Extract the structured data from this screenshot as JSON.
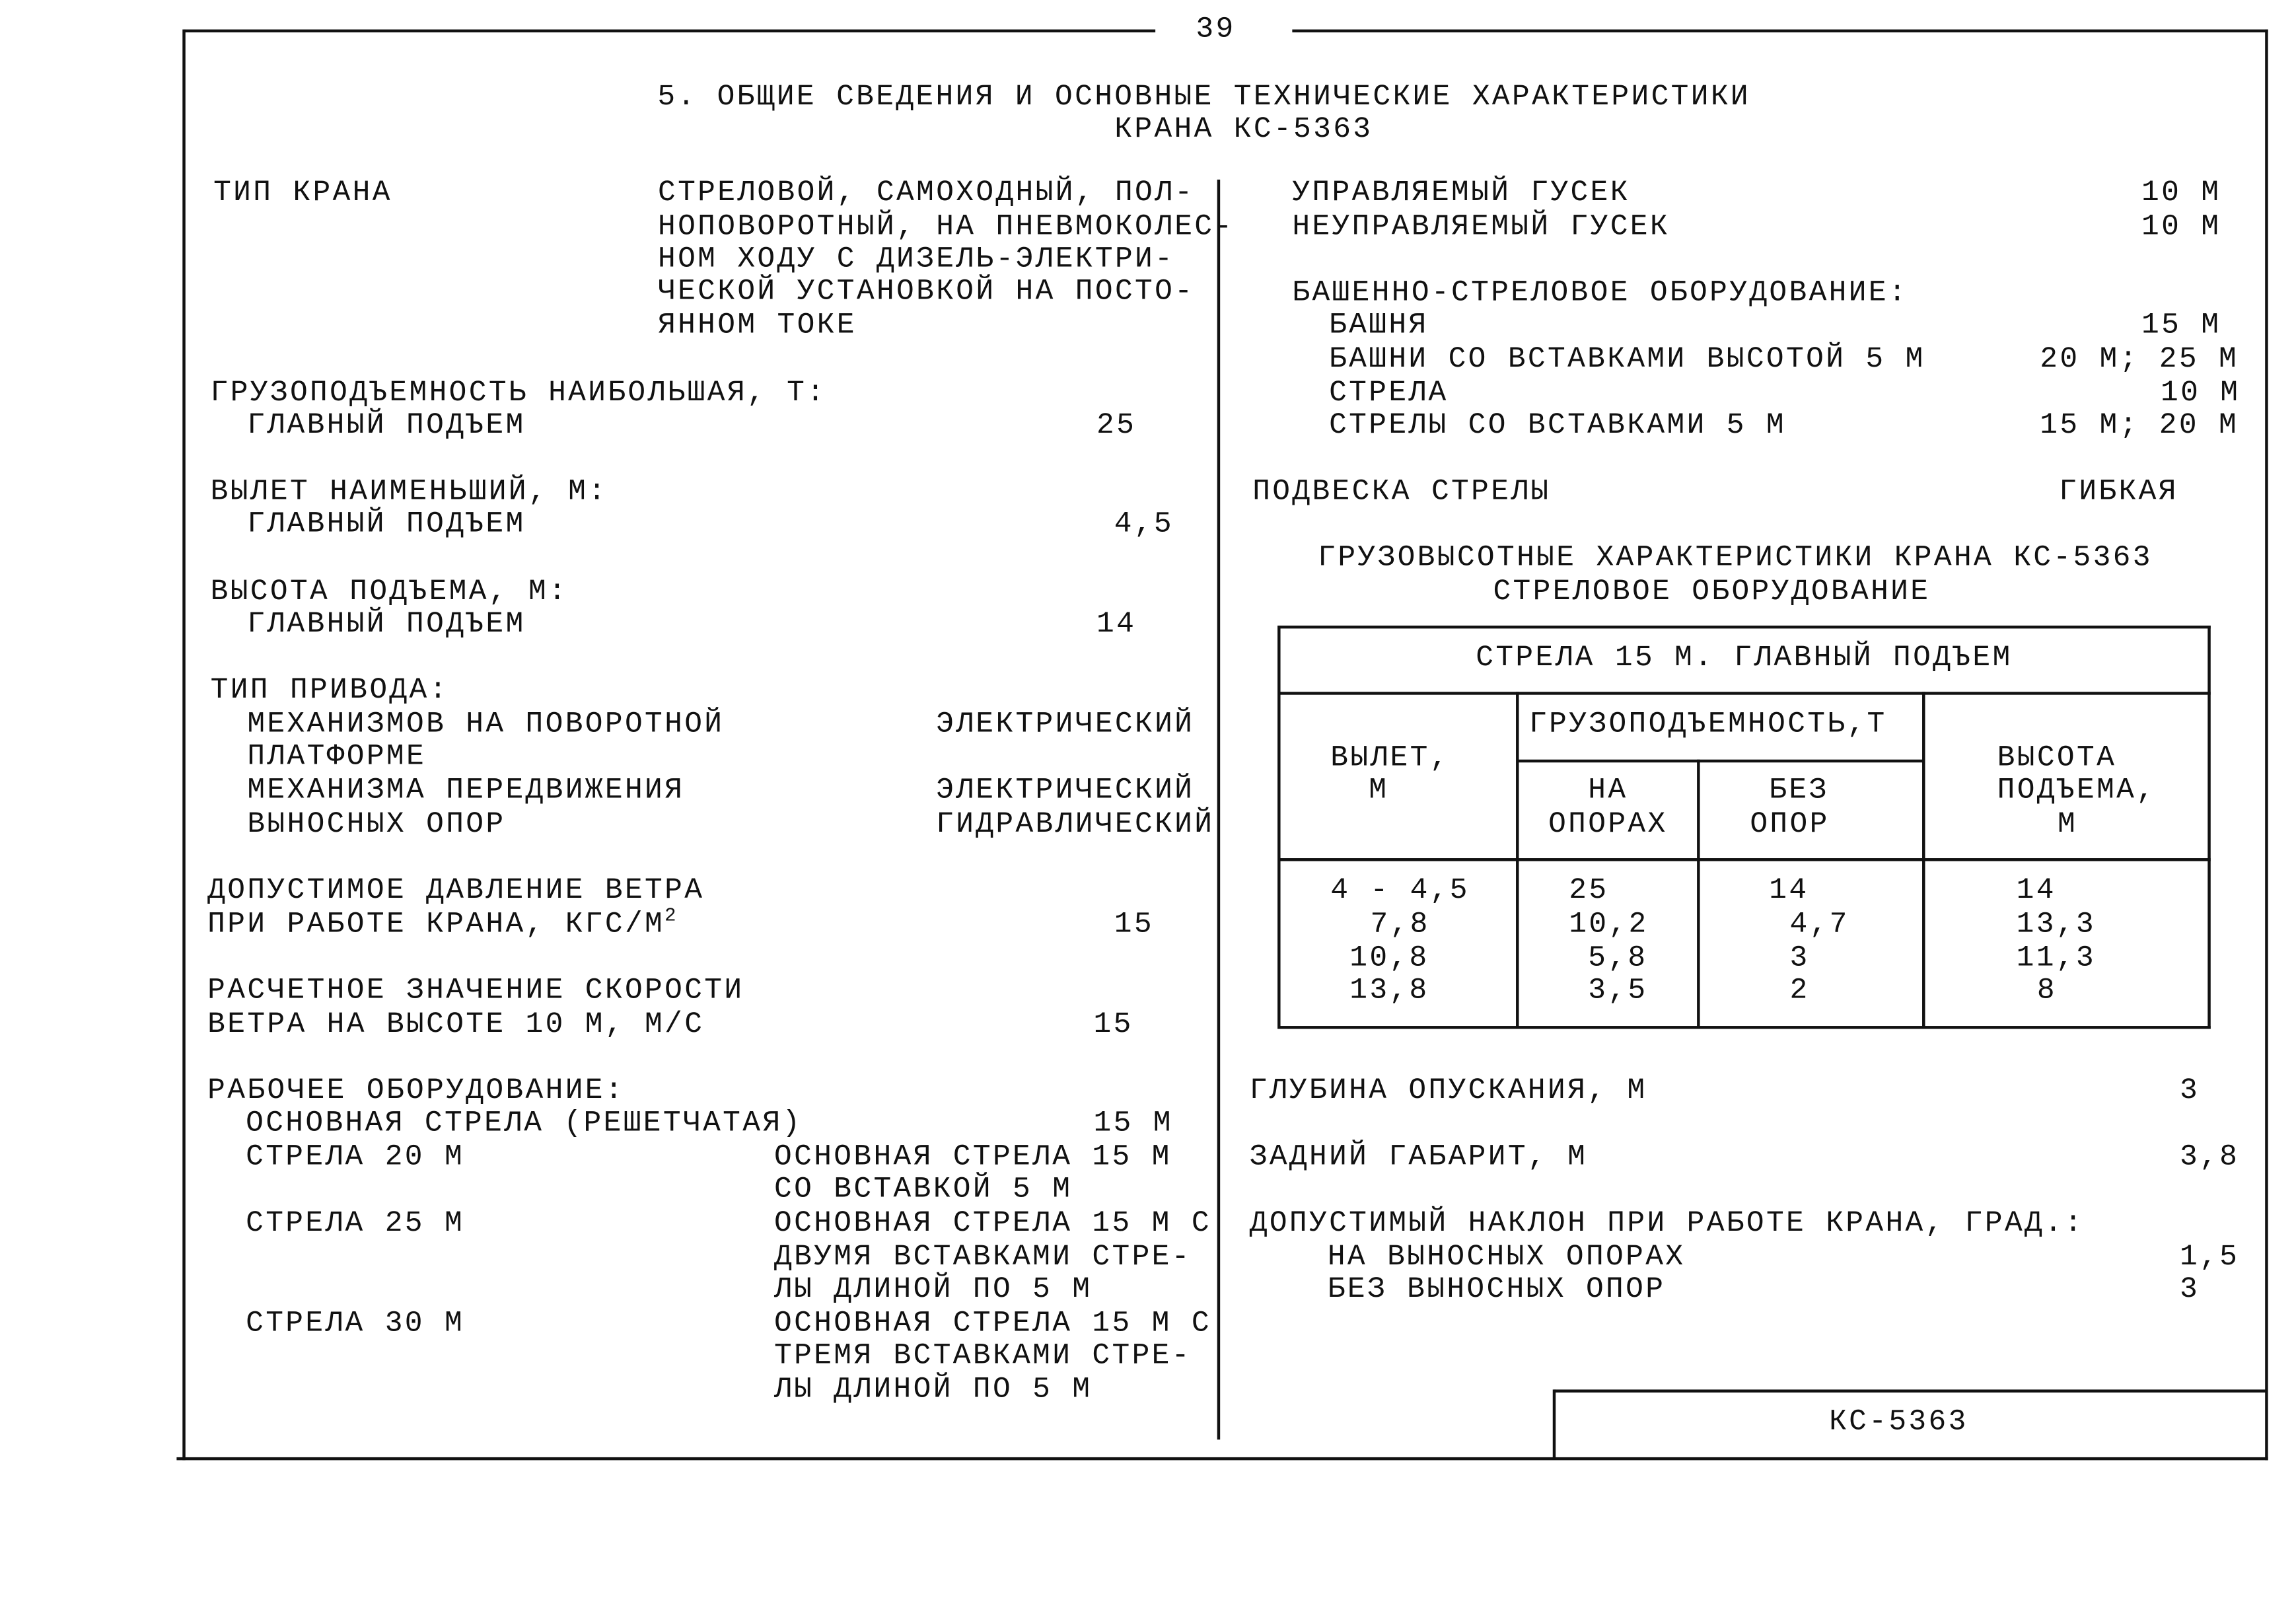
{
  "page_number": "39",
  "title": {
    "line1": "5. ОБЩИЕ СВЕДЕНИЯ И ОСНОВНЫЕ ТЕХНИЧЕСКИЕ ХАРАКТЕРИСТИКИ",
    "line2": "КРАНА КС-5363"
  },
  "left": {
    "crane_type": {
      "label": "ТИП КРАНА",
      "value": [
        "СТРЕЛОВОЙ, САМОХОДНЫЙ, ПОЛ-",
        "НОПОВОРОТНЫЙ, НА ПНЕВМОКОЛЕС-",
        "НОМ ХОДУ С ДИЗЕЛЬ-ЭЛЕКТРИ-",
        "ЧЕСКОЙ УСТАНОВКОЙ НА ПОСТО-",
        "ЯННОМ ТОКЕ"
      ]
    },
    "capacity": {
      "label": "ГРУЗОПОДЪЕМНОСТЬ НАИБОЛЬШАЯ, Т:",
      "sub": "ГЛАВНЫЙ ПОДЪЕМ",
      "value": "25"
    },
    "reach": {
      "label": "ВЫЛЕТ НАИМЕНЬШИЙ, М:",
      "sub": "ГЛАВНЫЙ ПОДЪЕМ",
      "value": "4,5"
    },
    "height": {
      "label": "ВЫСОТА ПОДЪЕМА, М:",
      "sub": "ГЛАВНЫЙ ПОДЪЕМ",
      "value": "14"
    },
    "drive": {
      "label": "ТИП ПРИВОДА:",
      "rows": [
        {
          "name": "МЕХАНИЗМОВ НА ПОВОРОТНОЙ",
          "value": "ЭЛЕКТРИЧЕСКИЙ"
        },
        {
          "name": "ПЛАТФОРМЕ",
          "value": ""
        },
        {
          "name": "МЕХАНИЗМА ПЕРЕДВИЖЕНИЯ",
          "value": "ЭЛЕКТРИЧЕСКИЙ"
        },
        {
          "name": "ВЫНОСНЫХ ОПОР",
          "value": "ГИДРАВЛИЧЕСКИЙ"
        }
      ]
    },
    "wind_pressure": {
      "line1": "ДОПУСТИМОЕ ДАВЛЕНИЕ ВЕТРА",
      "line2": "ПРИ РАБОТЕ КРАНА, КГС/М",
      "sup": "2",
      "value": "15"
    },
    "wind_speed": {
      "line1": "РАСЧЕТНОЕ ЗНАЧЕНИЕ СКОРОСТИ",
      "line2": "ВЕТРА НА ВЫСОТЕ 10 М, М/С",
      "value": "15"
    },
    "equipment": {
      "label": "РАБОЧЕЕ ОБОРУДОВАНИЕ:",
      "main": "ОСНОВНАЯ СТРЕЛА (РЕШЕТЧАТАЯ)",
      "main_value": "15 М",
      "booms": [
        {
          "name": "СТРЕЛА 20 М",
          "desc": [
            "ОСНОВНАЯ СТРЕЛА 15 М",
            "СО ВСТАВКОЙ 5 М"
          ]
        },
        {
          "name": "СТРЕЛА 25 М",
          "desc": [
            "ОСНОВНАЯ СТРЕЛА 15 М С",
            "ДВУМЯ ВСТАВКАМИ СТРЕ-",
            "ЛЫ ДЛИНОЙ ПО 5 М"
          ]
        },
        {
          "name": "СТРЕЛА 30 М",
          "desc": [
            "ОСНОВНАЯ СТРЕЛА 15 М С",
            "ТРЕМЯ ВСТАВКАМИ СТРЕ-",
            "ЛЫ ДЛИНОЙ ПО 5 М"
          ]
        }
      ]
    }
  },
  "right": {
    "jib_controlled": {
      "label": "УПРАВЛЯЕМЫЙ ГУСЕК",
      "value": "10 М"
    },
    "jib_fixed": {
      "label": "НЕУПРАВЛЯЕМЫЙ ГУСЕК",
      "value": "10 М"
    },
    "tower": {
      "label": "БАШЕННО-СТРЕЛОВОЕ ОБОРУДОВАНИЕ:",
      "rows": [
        {
          "name": "БАШНЯ",
          "value": "15 М"
        },
        {
          "name": "БАШНИ СО ВСТАВКАМИ ВЫСОТОЙ 5 М",
          "value": "20 М; 25 М"
        },
        {
          "name": "СТРЕЛА",
          "value": "10 М"
        },
        {
          "name": "СТРЕЛЫ СО ВСТАВКАМИ 5 М",
          "value": "15 М; 20 М"
        }
      ]
    },
    "suspension": {
      "label": "ПОДВЕСКА СТРЕЛЫ",
      "value": "ГИБКАЯ"
    },
    "table_title": {
      "line1": "ГРУЗОВЫСОТНЫЕ ХАРАКТЕРИСТИКИ КРАНА КС-5363",
      "line2": "СТРЕЛОВОЕ ОБОРУДОВАНИЕ"
    },
    "table": {
      "caption": "СТРЕЛА 15 М. ГЛАВНЫЙ ПОДЪЕМ",
      "headers": {
        "reach": [
          "ВЫЛЕТ,",
          "М"
        ],
        "capacity": "ГРУЗОПОДЪЕМНОСТЬ,Т",
        "on_outriggers": [
          "НА",
          "ОПОРАХ"
        ],
        "no_outriggers": [
          "БЕЗ",
          "ОПОР"
        ],
        "height": [
          "ВЫСОТА",
          "ПОДЪЕМА,",
          "М"
        ]
      },
      "rows": [
        [
          "4 - 4,5",
          "25",
          "14",
          "14"
        ],
        [
          "7,8",
          "10,2",
          "4,7",
          "13,3"
        ],
        [
          "10,8",
          "5,8",
          "3",
          "11,3"
        ],
        [
          "13,8",
          "3,5",
          "2",
          "8"
        ]
      ]
    },
    "depth": {
      "label": "ГЛУБИНА ОПУСКАНИЯ, М",
      "value": "3"
    },
    "tail": {
      "label": "ЗАДНИЙ ГАБАРИТ, М",
      "value": "3,8"
    },
    "tilt": {
      "label": "ДОПУСТИМЫЙ НАКЛОН ПРИ РАБОТЕ КРАНА, ГРАД.:",
      "rows": [
        {
          "name": "НА ВЫНОСНЫХ ОПОРАХ",
          "value": "1,5"
        },
        {
          "name": "БЕЗ ВЫНОСНЫХ ОПОР",
          "value": "3"
        }
      ]
    }
  },
  "stamp": "КС-5363"
}
